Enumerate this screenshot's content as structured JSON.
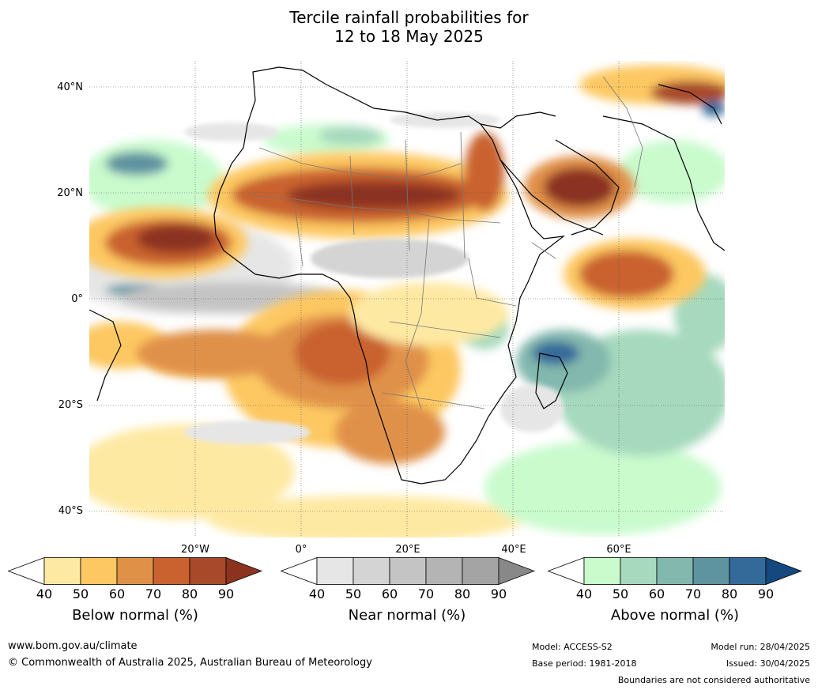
{
  "title": {
    "line1": "Tercile rainfall probabilities for",
    "line2": "12 to 18 May 2025"
  },
  "axes": {
    "lat_labels": [
      "40°N",
      "20°N",
      "0°",
      "20°S",
      "40°S"
    ],
    "lon_labels": [
      "20°W",
      "0°",
      "20°E",
      "40°E",
      "60°E"
    ]
  },
  "colorbars": [
    {
      "label": "Below normal (%)",
      "ticks": [
        "40",
        "50",
        "60",
        "70",
        "80",
        "90"
      ],
      "colors": [
        "#ffffff",
        "#fee9a3",
        "#fdc862",
        "#e09148",
        "#c9622f",
        "#a84a2a",
        "#8c3320"
      ]
    },
    {
      "label": "Near normal (%)",
      "ticks": [
        "40",
        "50",
        "60",
        "70",
        "80",
        "90"
      ],
      "colors": [
        "#ffffff",
        "#e6e6e6",
        "#d4d4d4",
        "#c4c4c4",
        "#b4b4b4",
        "#a4a4a4",
        "#888888"
      ]
    },
    {
      "label": "Above normal (%)",
      "ticks": [
        "40",
        "50",
        "60",
        "70",
        "80",
        "90"
      ],
      "colors": [
        "#ffffff",
        "#c9fbcd",
        "#a6d9bd",
        "#82b8ad",
        "#5e93a0",
        "#346a9a",
        "#15487e"
      ]
    }
  ],
  "footer": {
    "website": "www.bom.gov.au/climate",
    "copyright": "© Commonwealth of Australia 2025, Australian Bureau of Meteorology",
    "model": "Model: ACCESS-S2",
    "base_period": "Base period: 1981-2018",
    "model_run": "Model run: 28/04/2025",
    "issued": "Issued: 30/04/2025",
    "boundaries_note": "Boundaries are not considered authoritative"
  }
}
